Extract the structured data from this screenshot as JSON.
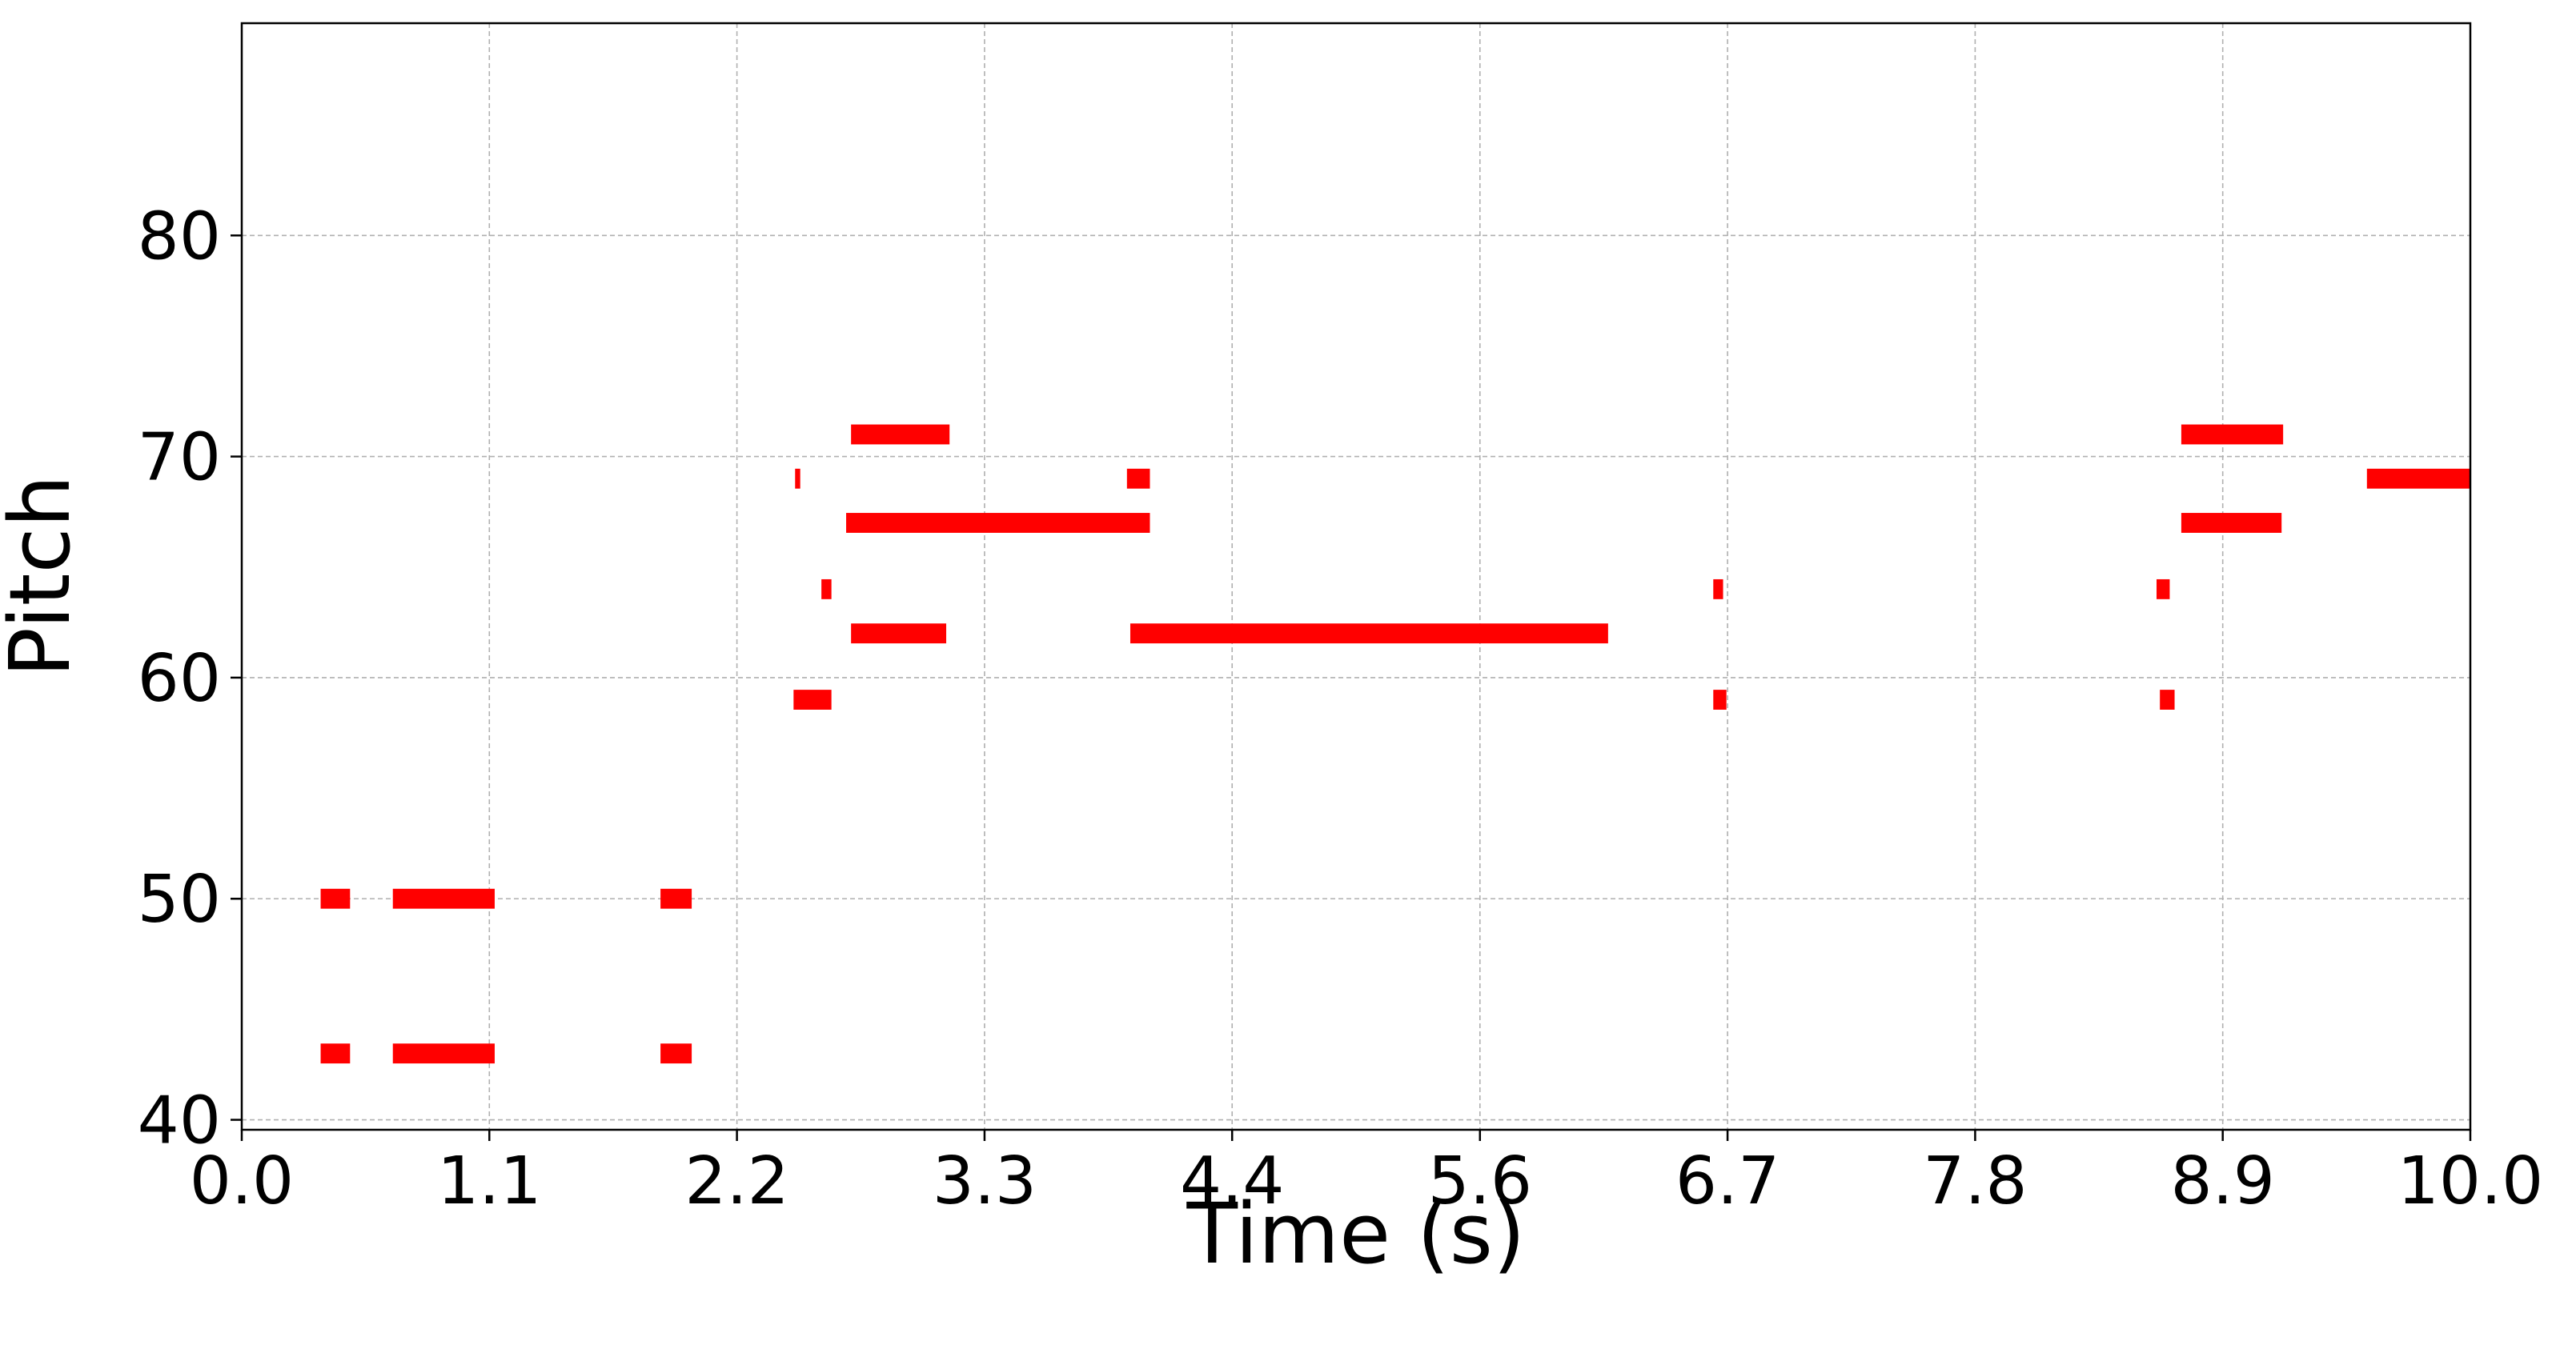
{
  "chart_data": {
    "type": "piano_roll",
    "x_label": "Time (s)",
    "y_label": "Pitch",
    "color": "#ff0000",
    "grid": true,
    "xlim": [
      0,
      10
    ],
    "ylim": [
      39.55,
      89.6
    ],
    "xticks": [
      {
        "value": 0,
        "label": "0.0"
      },
      {
        "value": 1.111,
        "label": "1.1"
      },
      {
        "value": 2.222,
        "label": "2.2"
      },
      {
        "value": 3.333,
        "label": "3.3"
      },
      {
        "value": 4.444,
        "label": "4.4"
      },
      {
        "value": 5.556,
        "label": "5.6"
      },
      {
        "value": 6.667,
        "label": "6.7"
      },
      {
        "value": 7.778,
        "label": "7.8"
      },
      {
        "value": 8.889,
        "label": "8.9"
      },
      {
        "value": 10,
        "label": "10.0"
      }
    ],
    "yticks": [
      40,
      50,
      60,
      70,
      80
    ],
    "notes": {
      "pitch": [
        50,
        43,
        50,
        43,
        50,
        43,
        59,
        69,
        64,
        71,
        67,
        62,
        69,
        62,
        64,
        59,
        64,
        59,
        71,
        67,
        69
      ],
      "start": [
        0.354,
        0.354,
        0.678,
        0.678,
        1.879,
        1.879,
        2.476,
        2.483,
        2.601,
        2.734,
        2.712,
        2.734,
        3.972,
        3.987,
        6.603,
        6.603,
        8.592,
        8.607,
        8.703,
        8.703,
        9.536
      ],
      "end": [
        0.486,
        0.486,
        1.135,
        1.135,
        2.019,
        2.019,
        2.646,
        2.506,
        2.646,
        3.176,
        4.075,
        3.161,
        4.075,
        6.131,
        6.647,
        6.662,
        8.651,
        8.673,
        9.16,
        9.153,
        10.0
      ]
    }
  }
}
